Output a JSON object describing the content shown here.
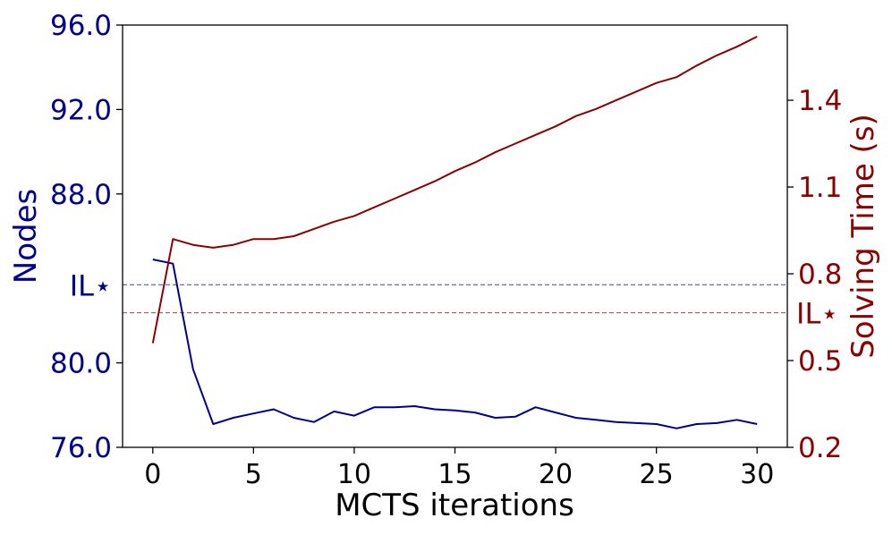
{
  "chart_data": {
    "type": "line",
    "xlabel": "MCTS iterations",
    "ylabel_left": "Nodes",
    "ylabel_right": "Solving Time (s)",
    "x_ticks": [
      "0",
      "5",
      "10",
      "15",
      "20",
      "25",
      "30"
    ],
    "y_left_ticks": [
      "76.0",
      "80.0",
      "88.0",
      "92.0",
      "96.0"
    ],
    "y_right_ticks": [
      "0.2",
      "0.5",
      "0.8",
      "1.1",
      "1.4"
    ],
    "xlim": [
      -1.5,
      31.5
    ],
    "ylim_left": [
      76,
      96
    ],
    "ylim_right": [
      0.2,
      1.66
    ],
    "x": [
      0,
      1,
      2,
      3,
      4,
      5,
      6,
      7,
      8,
      9,
      10,
      11,
      12,
      13,
      14,
      15,
      16,
      17,
      18,
      19,
      20,
      21,
      22,
      23,
      24,
      25,
      26,
      27,
      28,
      29,
      30
    ],
    "series": [
      {
        "name": "Nodes",
        "axis": "left",
        "color": "#00008b",
        "values": [
          84.9,
          84.7,
          79.7,
          77.1,
          77.4,
          77.6,
          77.8,
          77.4,
          77.2,
          77.7,
          77.5,
          77.9,
          77.9,
          77.95,
          77.8,
          77.75,
          77.65,
          77.4,
          77.45,
          77.9,
          77.65,
          77.4,
          77.3,
          77.2,
          77.15,
          77.1,
          76.9,
          77.1,
          77.15,
          77.3,
          77.1
        ]
      },
      {
        "name": "Solving Time (s)",
        "axis": "right",
        "color": "#8b0000",
        "values": [
          0.56,
          0.92,
          0.9,
          0.89,
          0.9,
          0.92,
          0.92,
          0.93,
          0.955,
          0.98,
          1.0,
          1.03,
          1.06,
          1.09,
          1.12,
          1.155,
          1.185,
          1.22,
          1.25,
          1.28,
          1.31,
          1.345,
          1.37,
          1.4,
          1.43,
          1.46,
          1.48,
          1.52,
          1.555,
          1.585,
          1.62
        ]
      }
    ],
    "reference_lines": [
      {
        "label": "IL⋆",
        "axis": "left",
        "value": 83.7,
        "color": "#00008b"
      },
      {
        "label": "IL⋆",
        "axis": "right",
        "value": 0.665,
        "color": "#8b0000"
      }
    ],
    "grid": false,
    "legend": "none"
  }
}
